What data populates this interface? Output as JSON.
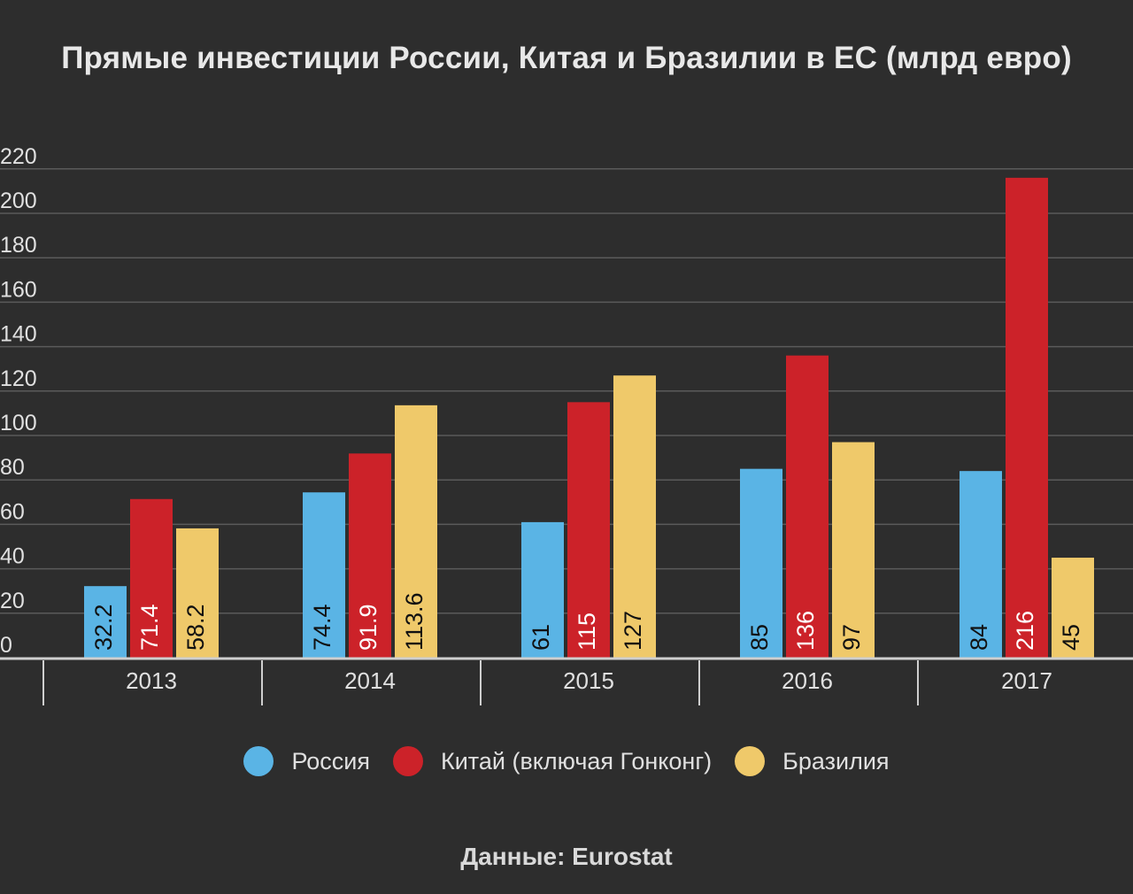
{
  "chart_data": {
    "type": "bar",
    "title": "Прямые инвестиции России, Китая и Бразилии в ЕС (млрд евро)",
    "xlabel": "",
    "ylabel": "",
    "categories": [
      "2013",
      "2014",
      "2015",
      "2016",
      "2017"
    ],
    "series": [
      {
        "name": "Россия",
        "color": "#5ab4e5",
        "values": [
          32.2,
          74.4,
          61,
          85,
          84
        ],
        "labels": [
          "32.2",
          "74.4",
          "61",
          "85",
          "84"
        ]
      },
      {
        "name": "Китай (включая Гонконг)",
        "color": "#cc2229",
        "values": [
          71.4,
          91.9,
          115,
          136,
          216
        ],
        "labels": [
          "71.4",
          "91.9",
          "115",
          "136",
          "216"
        ]
      },
      {
        "name": "Бразилия",
        "color": "#efc96a",
        "values": [
          58.2,
          113.6,
          127,
          97,
          45
        ],
        "labels": [
          "58.2",
          "113.6",
          "127",
          "97",
          "45"
        ]
      }
    ],
    "ylim": [
      0,
      220
    ],
    "yticks": [
      0,
      20,
      40,
      60,
      80,
      100,
      120,
      140,
      160,
      180,
      200,
      220
    ],
    "ytick_labels": [
      "0",
      "20",
      "40",
      "60",
      "80",
      "100",
      "120",
      "140",
      "160",
      "180",
      "200",
      "220"
    ],
    "grid": true,
    "legend_position": "bottom-center",
    "source": "Данные: Eurostat"
  },
  "colors": {
    "background": "#2d2d2d",
    "grid": "#5a5a5a",
    "axis": "#cfcfcf",
    "value_label": "#111111"
  }
}
